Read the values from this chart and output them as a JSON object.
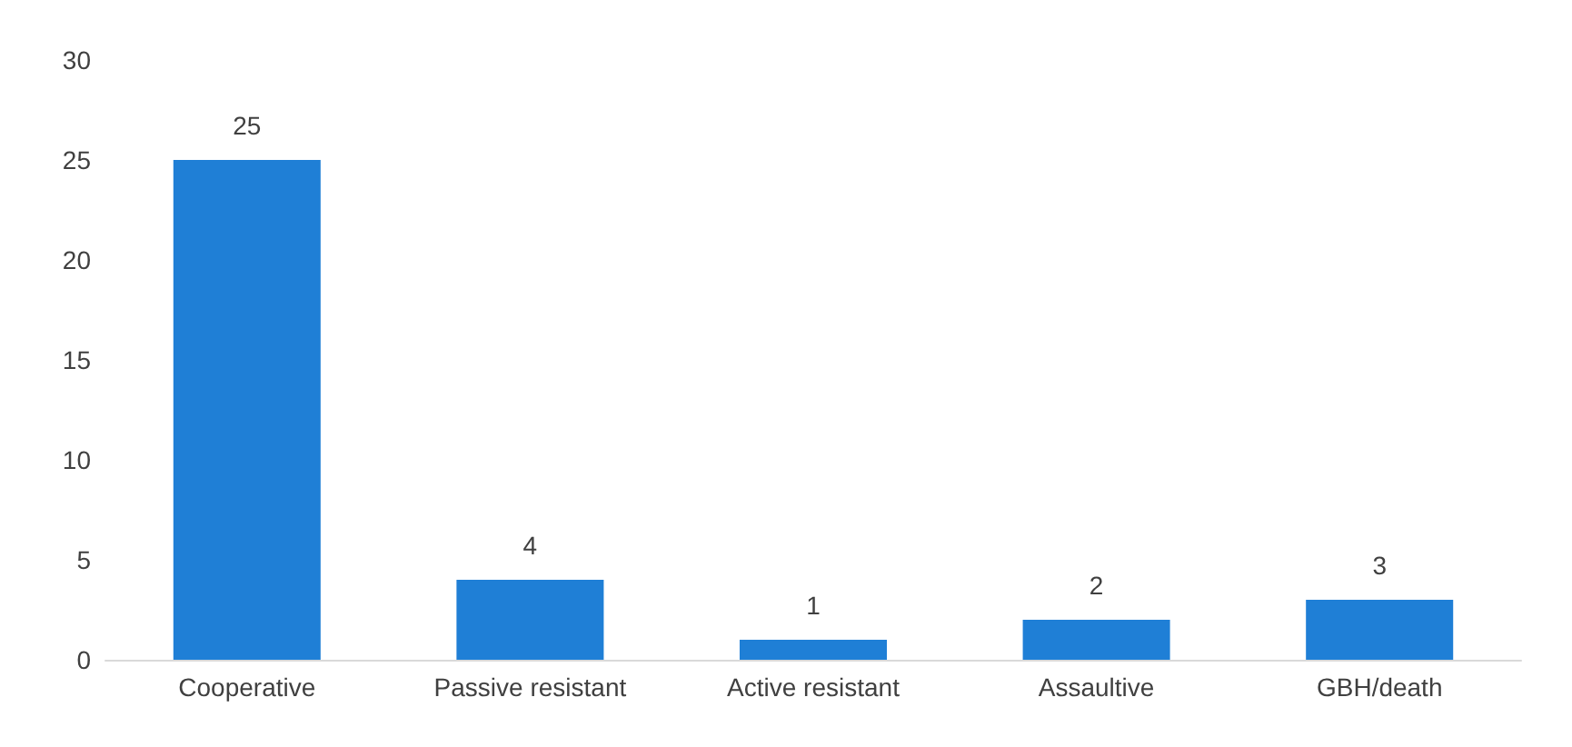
{
  "chart_data": {
    "type": "bar",
    "categories": [
      "Cooperative",
      "Passive resistant",
      "Active resistant",
      "Assaultive",
      "GBH/death"
    ],
    "values": [
      25,
      4,
      1,
      2,
      3
    ],
    "color": "#1f7fd6",
    "ylim": [
      0,
      30
    ],
    "yticks": [
      0,
      5,
      10,
      15,
      20,
      25,
      30
    ],
    "grid": false,
    "data_labels": true
  }
}
